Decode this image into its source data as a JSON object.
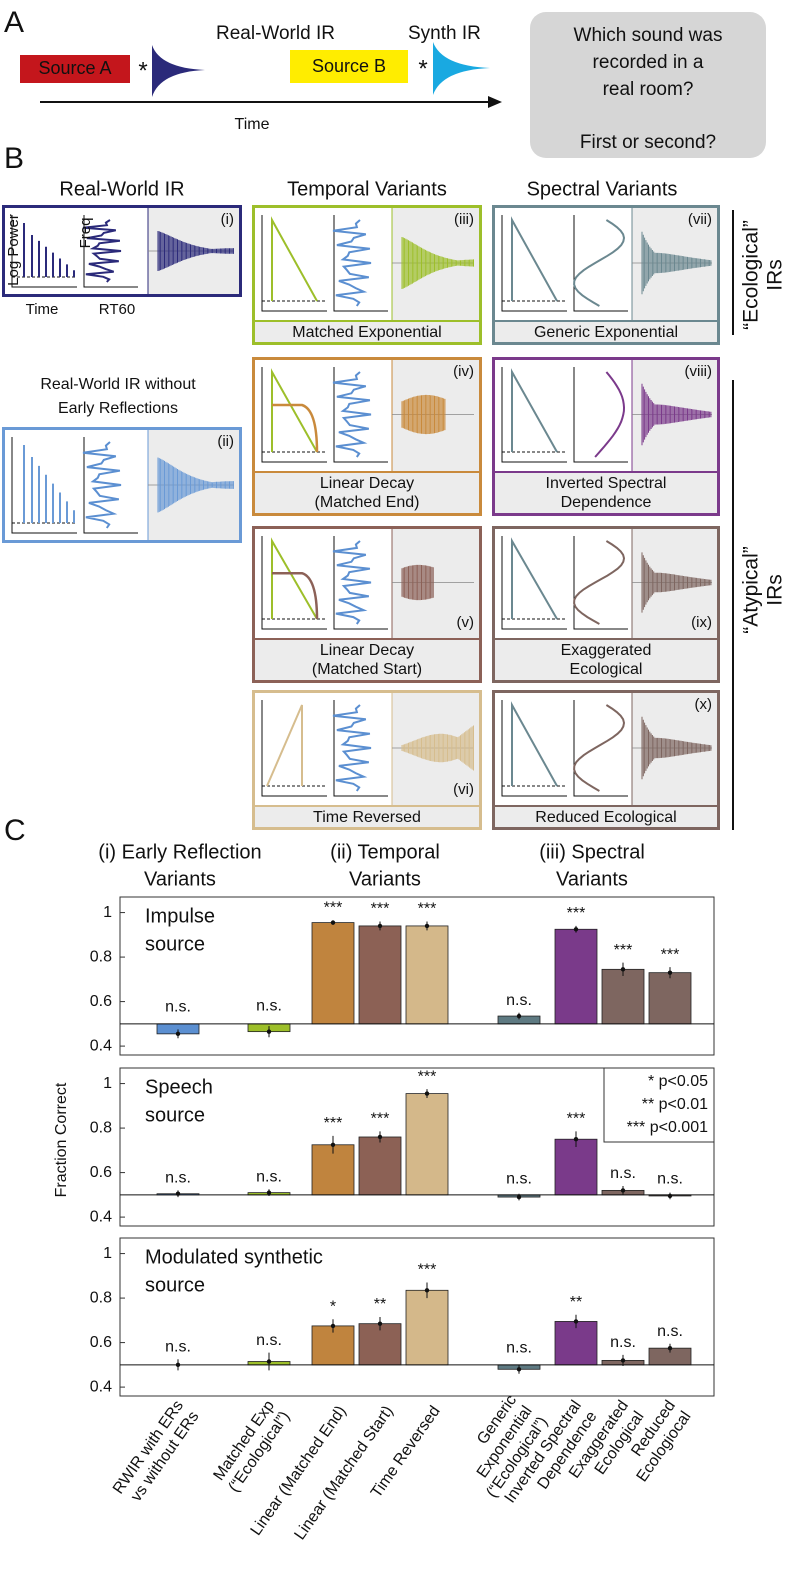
{
  "panel_a": {
    "label": "A",
    "source_a": "Source A",
    "conv_a": "*",
    "ir_a": "Real-World IR",
    "source_b": "Source B",
    "conv_b": "*",
    "ir_b": "Synth IR",
    "time": "Time",
    "question": [
      "Which sound was",
      "recorded in a",
      "real room?"
    ],
    "question_2": "First or second?"
  },
  "panel_b": {
    "label": "B",
    "col_headers": [
      "Real-World IR",
      "Temporal Variants",
      "Spectral Variants"
    ],
    "axis_labels": {
      "log_power": "Log Power",
      "freq": "Freq",
      "time": "Time",
      "rt60": "RT60"
    },
    "rwir_no_er": [
      "Real-World IR without",
      "Early Reflections"
    ],
    "boxes": [
      {
        "numeral": "(i)"
      },
      {
        "numeral": "(ii)"
      },
      {
        "numeral": "(iii)",
        "caption": [
          "Matched Exponential"
        ]
      },
      {
        "numeral": "(iv)",
        "caption": [
          "Linear Decay",
          "(Matched End)"
        ]
      },
      {
        "numeral": "(v)",
        "caption": [
          "Linear Decay",
          "(Matched Start)"
        ]
      },
      {
        "numeral": "(vi)",
        "caption": [
          "Time Reversed"
        ]
      },
      {
        "numeral": "(vii)",
        "caption": [
          "Generic Exponential"
        ]
      },
      {
        "numeral": "(viii)",
        "caption": [
          "Inverted Spectral",
          "Dependence"
        ]
      },
      {
        "numeral": "(ix)",
        "caption": [
          "Exaggerated",
          "Ecological"
        ]
      },
      {
        "numeral": "(x)",
        "caption": [
          "Reduced Ecological"
        ]
      }
    ],
    "ecological": [
      "“Ecological”",
      "IRs"
    ],
    "atypical": [
      "“Atypical”",
      "IRs"
    ]
  },
  "panel_c": {
    "label": "C",
    "group_headers": [
      [
        "(i) Early Reflection",
        "Variants"
      ],
      [
        "(ii) Temporal",
        "Variants"
      ],
      [
        "(iii) Spectral",
        "Variants"
      ]
    ],
    "y_label": "Fraction Correct",
    "legend": [
      "* p<0.05",
      "** p<0.01",
      "*** p<0.001"
    ]
  },
  "chart_data": [
    {
      "type": "bar",
      "title": [
        "Impulse",
        "source"
      ],
      "ylim": [
        0.36,
        1.07
      ],
      "yticks": [
        0.4,
        0.6,
        0.8,
        1
      ],
      "baseline": 0.5,
      "colors": [
        "#5b8fd1",
        "#9dbf2a",
        "#c0843e",
        "#8c6155",
        "#d4b88a",
        "#5e7a82",
        "#7a3a8a",
        "#7e6660",
        "#7e6660"
      ],
      "values": [
        0.455,
        0.465,
        0.955,
        0.94,
        0.94,
        0.535,
        0.925,
        0.745,
        0.73
      ],
      "errors": [
        0.02,
        0.025,
        0.01,
        0.02,
        0.02,
        0.015,
        0.015,
        0.03,
        0.025
      ],
      "value_labels": [
        "n.s.",
        "n.s.",
        "***",
        "***",
        "***",
        "n.s.",
        "***",
        "***",
        "***"
      ]
    },
    {
      "type": "bar",
      "title": [
        "Speech",
        "source"
      ],
      "ylim": [
        0.36,
        1.07
      ],
      "yticks": [
        0.4,
        0.6,
        0.8,
        1
      ],
      "baseline": 0.5,
      "colors": [
        "#5b8fd1",
        "#9dbf2a",
        "#c0843e",
        "#8c6155",
        "#d4b88a",
        "#5e7a82",
        "#7a3a8a",
        "#7e6660",
        "#7e6660"
      ],
      "values": [
        0.505,
        0.51,
        0.725,
        0.76,
        0.955,
        0.49,
        0.75,
        0.52,
        0.495
      ],
      "errors": [
        0.015,
        0.015,
        0.04,
        0.025,
        0.02,
        0.015,
        0.035,
        0.02,
        0.015
      ],
      "value_labels": [
        "n.s.",
        "n.s.",
        "***",
        "***",
        "***",
        "n.s.",
        "***",
        "n.s.",
        "n.s."
      ]
    },
    {
      "type": "bar",
      "title": [
        "Modulated synthetic",
        "source"
      ],
      "ylim": [
        0.36,
        1.07
      ],
      "yticks": [
        0.4,
        0.6,
        0.8,
        1
      ],
      "baseline": 0.5,
      "colors": [
        "#5b8fd1",
        "#9dbf2a",
        "#c0843e",
        "#8c6155",
        "#d4b88a",
        "#5e7a82",
        "#7a3a8a",
        "#7e6660",
        "#7e6660"
      ],
      "values": [
        0.5,
        0.515,
        0.675,
        0.685,
        0.835,
        0.48,
        0.695,
        0.52,
        0.575
      ],
      "errors": [
        0.025,
        0.04,
        0.03,
        0.03,
        0.035,
        0.02,
        0.03,
        0.025,
        0.02
      ],
      "value_labels": [
        "n.s.",
        "n.s.",
        "*",
        "**",
        "***",
        "n.s.",
        "**",
        "n.s.",
        "n.s."
      ],
      "categories": [
        [
          "RWIR with ERs",
          "vs without ERs"
        ],
        [
          "Matched Exp",
          "(“Ecological”)"
        ],
        [
          "Linear (Matched End)"
        ],
        [
          "Linear (Matched Start)"
        ],
        [
          "Time Reversed"
        ],
        [
          "Generic",
          "Exponential",
          "(“Ecological”)"
        ],
        [
          "Inverted Spectral",
          "Dependence"
        ],
        [
          "Exaggerated",
          "Ecological"
        ],
        [
          "Reduced",
          "Ecologiocal"
        ]
      ]
    }
  ]
}
